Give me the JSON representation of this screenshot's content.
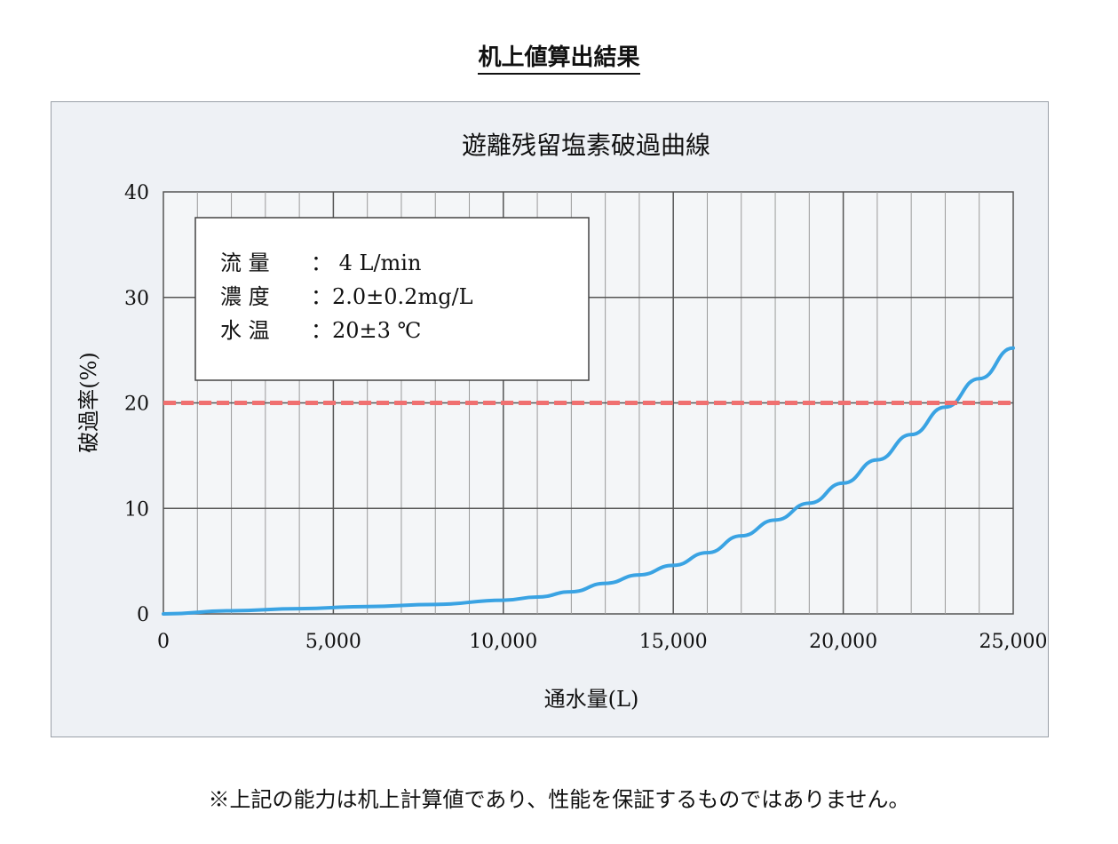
{
  "page": {
    "heading": "机上値算出結果",
    "footnote": "※上記の能力は机上計算値であり、性能を保証するものではありません。"
  },
  "chart_data": {
    "type": "line",
    "title": "遊離残留塩素破過曲線",
    "xlabel": "通水量(L)",
    "ylabel": "破過率(%)",
    "xlim": [
      0,
      25000
    ],
    "ylim": [
      0,
      40
    ],
    "x_ticks": [
      0,
      5000,
      10000,
      15000,
      20000,
      25000
    ],
    "x_tick_labels": [
      "0",
      "5,000",
      "10,000",
      "15,000",
      "20,000",
      "25,000"
    ],
    "y_ticks": [
      0,
      10,
      20,
      30,
      40
    ],
    "y_tick_labels": [
      "0",
      "10",
      "20",
      "30",
      "40"
    ],
    "grid": true,
    "x_minor_step": 1000,
    "series": [
      {
        "color": "#3aa3e3",
        "style": "solid",
        "x": [
          0,
          2000,
          4000,
          6000,
          8000,
          10000,
          11000,
          12000,
          13000,
          14000,
          15000,
          16000,
          17000,
          18000,
          19000,
          20000,
          21000,
          22000,
          23000,
          24000,
          25000
        ],
        "y": [
          0.0,
          0.3,
          0.5,
          0.7,
          0.9,
          1.3,
          1.6,
          2.1,
          2.9,
          3.7,
          4.6,
          5.8,
          7.4,
          8.9,
          10.5,
          12.4,
          14.6,
          17.0,
          19.6,
          22.3,
          25.2
        ]
      },
      {
        "color": "#f07070",
        "style": "dashed",
        "x": [
          0,
          25000
        ],
        "y": [
          20,
          20
        ]
      }
    ],
    "legend_box": {
      "position": "top-left",
      "lines": [
        {
          "label": "流 量",
          "value": "： 4 L/min"
        },
        {
          "label": "濃 度",
          "value": "：2.0±0.2mg/L"
        },
        {
          "label": "水 温",
          "value": "：20±3 ℃"
        }
      ]
    }
  }
}
